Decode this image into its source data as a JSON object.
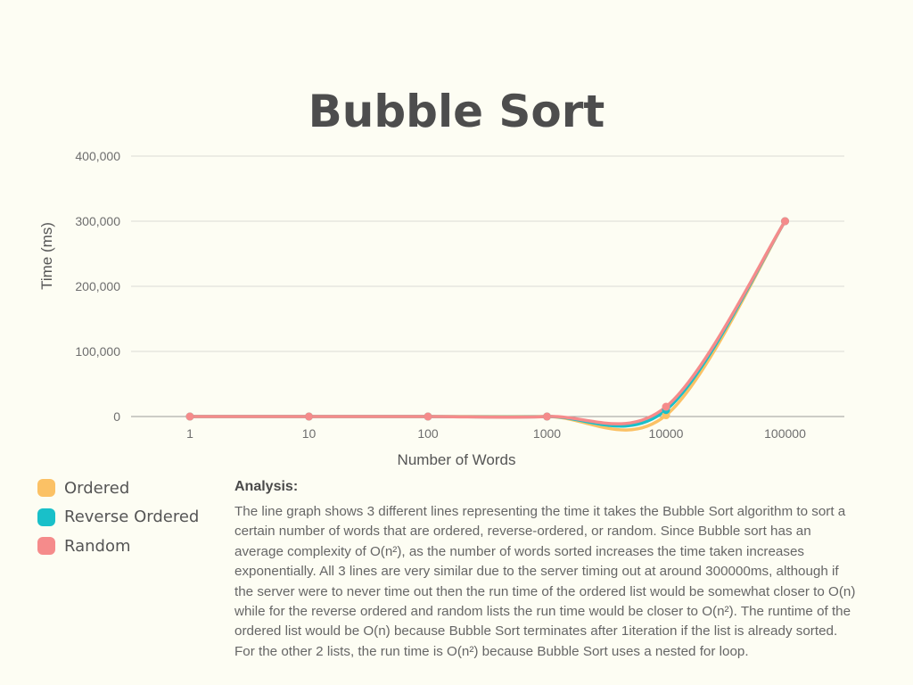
{
  "chart_data": {
    "type": "line",
    "title": "Bubble Sort",
    "xlabel": "Number of Words",
    "ylabel": "Time (ms)",
    "categories": [
      "1",
      "10",
      "100",
      "1000",
      "10000",
      "100000"
    ],
    "yticks": [
      "0",
      "100,000",
      "200,000",
      "300,000",
      "400,000"
    ],
    "ylim": [
      0,
      400000
    ],
    "grid": true,
    "series": [
      {
        "name": "Ordered",
        "color": "#fbc165",
        "values": [
          0,
          0,
          0,
          0,
          2000,
          300000
        ]
      },
      {
        "name": "Reverse Ordered",
        "color": "#19c0c9",
        "values": [
          0,
          0,
          0,
          0,
          10000,
          300000
        ]
      },
      {
        "name": "Random",
        "color": "#f58b8b",
        "values": [
          0,
          0,
          0,
          0,
          15000,
          300000
        ]
      }
    ]
  },
  "legend": {
    "items": [
      {
        "label": "Ordered",
        "color": "#fbc165"
      },
      {
        "label": "Reverse Ordered",
        "color": "#19c0c9"
      },
      {
        "label": "Random",
        "color": "#f58b8b"
      }
    ]
  },
  "analysis": {
    "title": "Analysis:",
    "body": "The line graph shows 3 different lines representing the time it takes the Bubble Sort algorithm to sort a certain number of words that are ordered, reverse-ordered, or random. Since Bubble sort has an average complexity of O(n²), as the number of words sorted increases the time taken increases exponentially. All 3 lines are very similar due to the server timing out at around 300000ms, although if the server were to never time out then the run time of the ordered list would be somewhat closer to O(n) while for the reverse ordered and random lists the run time would be closer to O(n²). The runtime of the ordered list would be O(n) because Bubble Sort terminates after 1iteration if the list is already sorted. For the other 2 lists, the run time is O(n²) because Bubble Sort uses a nested for loop."
  }
}
